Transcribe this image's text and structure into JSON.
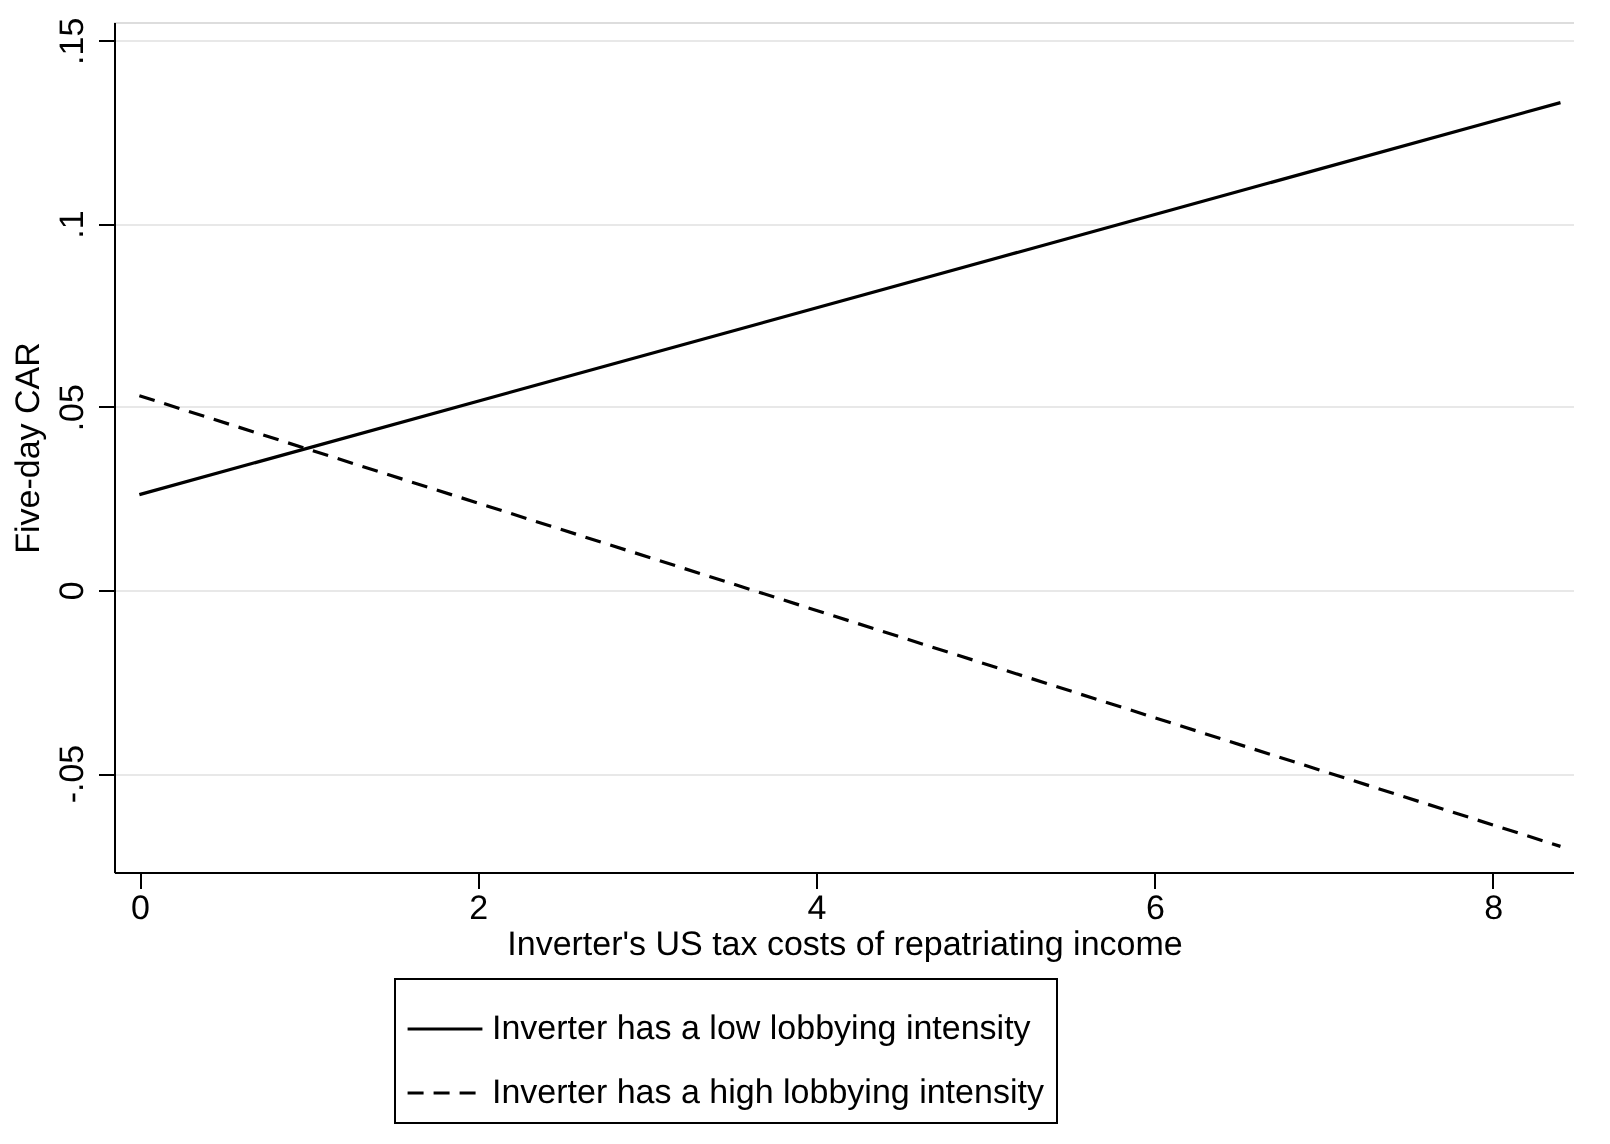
{
  "chart_data": {
    "type": "line",
    "xlabel": "Inverter's US tax costs of repatriating income",
    "ylabel": "Five-day CAR",
    "x": [
      0,
      8.4
    ],
    "series": [
      {
        "name": "Inverter has a low lobbying intensity",
        "color": "#000000",
        "line_style": "solid",
        "values": [
          0.026,
          0.133
        ]
      },
      {
        "name": "Inverter has a high lobbying intensity",
        "color": "#000000",
        "line_style": "dashed",
        "values": [
          0.053,
          -0.07
        ]
      }
    ],
    "xlim": [
      -0.15,
      8.48
    ],
    "xticks": [
      0,
      2,
      4,
      6,
      8
    ],
    "ylim": [
      -0.077,
      0.155
    ],
    "yticks": [
      {
        "value": -0.05,
        "label": "-.05"
      },
      0,
      {
        "value": 0.05,
        "label": ".05"
      },
      {
        "value": 0.1,
        "label": ".1"
      },
      {
        "value": 0.15,
        "label": ".15"
      }
    ],
    "grid": "y",
    "legend": "bottom",
    "marker": "none"
  }
}
